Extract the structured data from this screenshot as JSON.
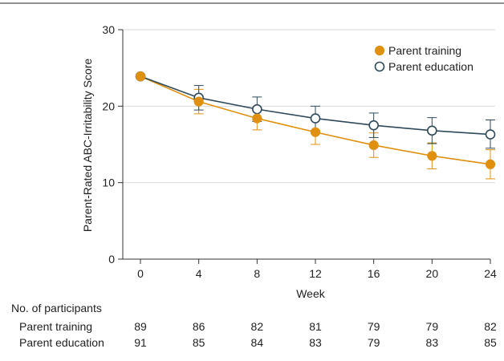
{
  "chart_data": {
    "type": "line",
    "title": "",
    "xlabel": "Week",
    "ylabel": "Parent-Rated ABC-Irritability Score",
    "x": [
      0,
      4,
      8,
      12,
      16,
      20,
      24
    ],
    "x_tick_labels": [
      "0",
      "4",
      "8",
      "12",
      "16",
      "20",
      "24"
    ],
    "ylim": [
      0,
      30
    ],
    "y_ticks": [
      0,
      10,
      20,
      30
    ],
    "y_tick_labels": [
      "0",
      "10",
      "20",
      "30"
    ],
    "grid": "horizontal",
    "legend_position": "top-right",
    "series": [
      {
        "name": "Parent training",
        "marker": "filled-circle",
        "color": "#e0900f",
        "values": [
          23.9,
          20.6,
          18.4,
          16.6,
          14.9,
          13.5,
          12.4
        ],
        "error_upper": [
          23.9,
          22.2,
          19.9,
          18.2,
          16.5,
          15.2,
          14.3
        ],
        "error_lower": [
          23.9,
          19.0,
          16.9,
          15.0,
          13.3,
          11.8,
          10.5
        ]
      },
      {
        "name": "Parent education",
        "marker": "open-circle",
        "color": "#2e4a5a",
        "values": [
          23.9,
          21.1,
          19.6,
          18.4,
          17.5,
          16.8,
          16.3
        ],
        "error_upper": [
          23.9,
          22.7,
          21.2,
          20.0,
          19.1,
          18.5,
          18.2
        ],
        "error_lower": [
          23.9,
          19.5,
          18.0,
          16.8,
          15.9,
          15.1,
          14.5
        ]
      }
    ]
  },
  "participants_table": {
    "heading": "No. of participants",
    "rows": [
      {
        "label": "Parent training",
        "counts": [
          "89",
          "86",
          "82",
          "81",
          "79",
          "79",
          "82"
        ]
      },
      {
        "label": "Parent education",
        "counts": [
          "91",
          "85",
          "84",
          "83",
          "79",
          "83",
          "85"
        ]
      }
    ]
  },
  "colors": {
    "training": "#e0900f",
    "education": "#2e4a5a",
    "grid": "#d9d9d9",
    "axis": "#333333"
  }
}
